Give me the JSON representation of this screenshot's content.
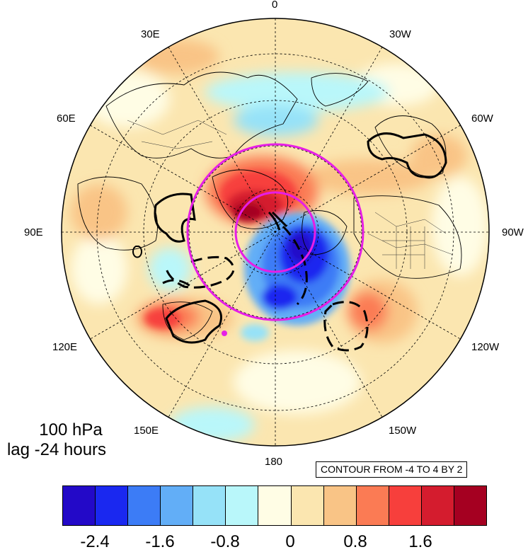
{
  "map": {
    "projection": "north-polar-stereographic",
    "longitude_labels": {
      "top": "0",
      "top_left": "30E",
      "top_right": "30W",
      "upper_left": "60E",
      "upper_right": "60W",
      "left": "90E",
      "right": "90W",
      "lower_left": "120E",
      "lower_right": "120W",
      "bottom_left": "150E",
      "bottom_right": "150W",
      "bottom": "180"
    },
    "level_label": "100 hPa",
    "lag_label": "lag -24 hours",
    "contour_info": "CONTOUR FROM -4 TO 4 BY 2",
    "colors": {
      "ring": "#e61ee6",
      "marker": "#e61ee6",
      "grid": "#000000",
      "contour": "#000000"
    }
  },
  "colorbar": {
    "colors": [
      "#2309c8",
      "#1a28f0",
      "#3c7cf6",
      "#62aef7",
      "#96e2f8",
      "#b9f7fa",
      "#fffde5",
      "#fbe6b0",
      "#f9c486",
      "#fb7b54",
      "#f73f3c",
      "#d41c2e",
      "#a50021"
    ],
    "labels": [
      "-2.4",
      "-1.6",
      "-0.8",
      "0",
      "0.8",
      "1.6"
    ]
  }
}
